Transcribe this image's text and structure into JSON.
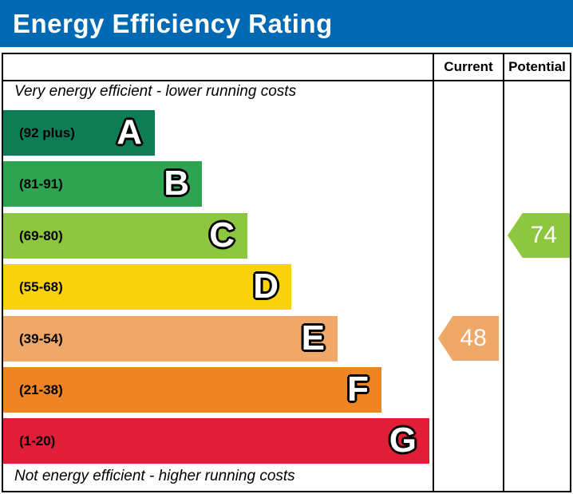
{
  "title": "Energy Efficiency Rating",
  "colors": {
    "title_bar": "#0069B4",
    "title_text": "#FFFFFF",
    "border": "#000000",
    "arrow_text": "#FFFFFF"
  },
  "columns": {
    "current_label": "Current",
    "potential_label": "Potential"
  },
  "top_note": "Very energy efficient - lower running costs",
  "bottom_note": "Not energy efficient - higher running costs",
  "chart_data": {
    "type": "bar",
    "title": "Energy Efficiency Rating",
    "legend_position": "none",
    "bands": [
      {
        "letter": "A",
        "range_label": "(92 plus)",
        "color": "#0E7C54"
      },
      {
        "letter": "B",
        "range_label": "(81-91)",
        "color": "#2EA452"
      },
      {
        "letter": "C",
        "range_label": "(69-80)",
        "color": "#8DC63F"
      },
      {
        "letter": "D",
        "range_label": "(55-68)",
        "color": "#F8D20C"
      },
      {
        "letter": "E",
        "range_label": "(39-54)",
        "color": "#F0A868"
      },
      {
        "letter": "F",
        "range_label": "(21-38)",
        "color": "#EE8424"
      },
      {
        "letter": "G",
        "range_label": "(1-20)",
        "color": "#E01E37"
      }
    ],
    "markers": [
      {
        "column": "current",
        "value": 48,
        "band": "E",
        "color": "#F0A868"
      },
      {
        "column": "potential",
        "value": 74,
        "band": "C",
        "color": "#8DC63F"
      }
    ]
  }
}
